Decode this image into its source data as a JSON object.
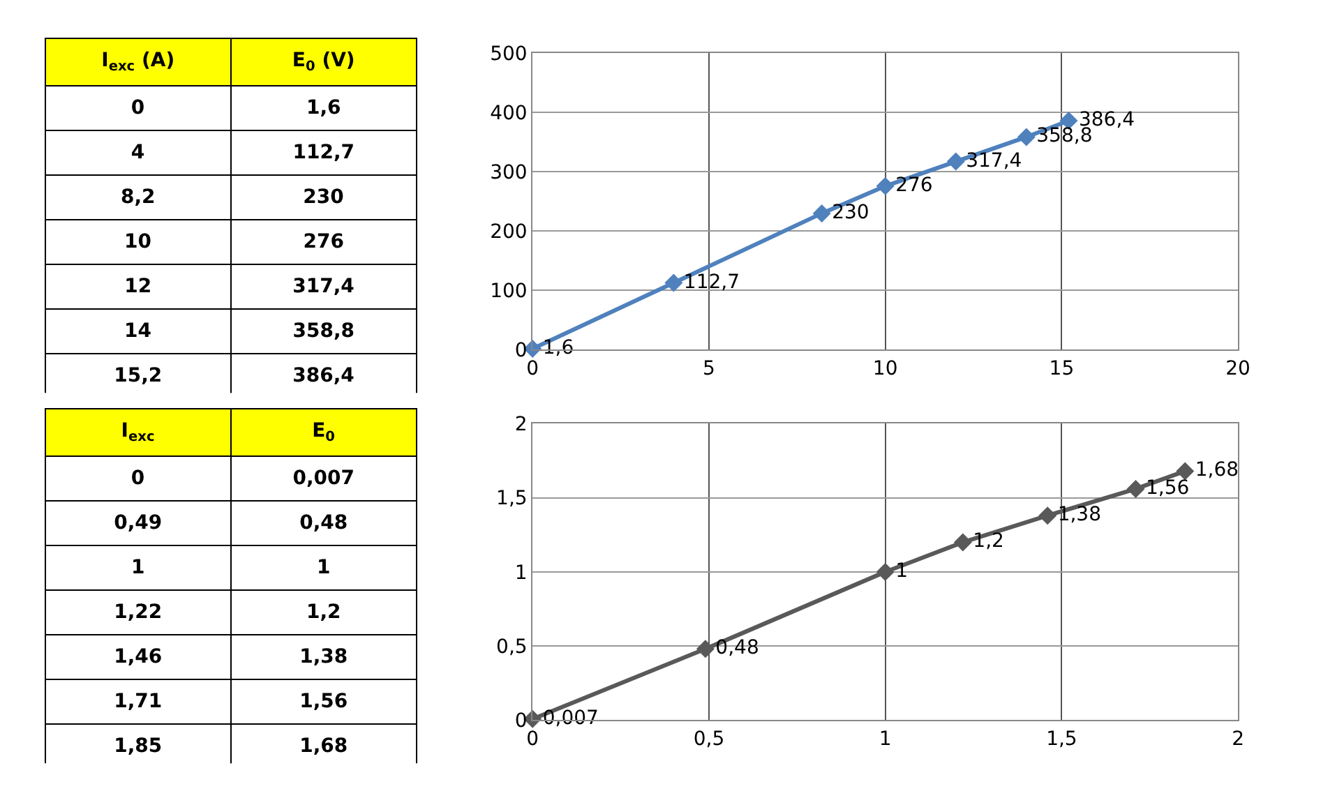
{
  "chart_data": [
    {
      "type": "other",
      "categories": [
        "I$_{exc}$ (A)",
        "E$_{0}$ (V)"
      ],
      "annotations": [
        "0",
        "1,6",
        "4",
        "112,7",
        "8,2",
        "230",
        "10",
        "276",
        "12",
        "317,4",
        "14",
        "358,8",
        "15,2",
        "386,4"
      ]
    },
    {
      "type": "line",
      "x": [
        0,
        4,
        8.2,
        10,
        12,
        14,
        15.2
      ],
      "series": [
        {
          "color": "#4f81bd",
          "values": [
            1.6,
            112.7,
            230,
            276,
            317.4,
            358.8,
            386.4
          ]
        }
      ],
      "value_labels": [
        "1,6",
        "112,7",
        "230",
        "276",
        "317,4",
        "358,8",
        "386,4"
      ],
      "xlim": [
        0,
        20
      ],
      "xticks": [
        0,
        5,
        10,
        15,
        20
      ],
      "ylim": [
        0,
        500
      ],
      "yticks": [
        0,
        100,
        200,
        300,
        400,
        500
      ],
      "grid": true,
      "marker": "diamond",
      "line_style": "solid"
    },
    {
      "type": "other",
      "categories": [
        "I$_{exc}$",
        "E$_{0}$"
      ],
      "annotations": [
        "0",
        "0,007",
        "0,49",
        "0,48",
        "1",
        "1",
        "1,22",
        "1,2",
        "1,46",
        "1,38",
        "1,71",
        "1,56",
        "1,85",
        "1,68"
      ]
    },
    {
      "type": "line",
      "x": [
        0,
        0.49,
        1,
        1.22,
        1.46,
        1.71,
        1.85
      ],
      "series": [
        {
          "color": "#595959",
          "values": [
            0.007,
            0.48,
            1,
            1.2,
            1.38,
            1.56,
            1.68
          ]
        }
      ],
      "value_labels": [
        "0,007",
        "0,48",
        "1",
        "1,2",
        "1,38",
        "1,56",
        "1,68"
      ],
      "xlim": [
        0,
        2
      ],
      "xticks": [
        0,
        {
          "value": 0.5,
          "label": "0,5"
        },
        1,
        {
          "value": 1.5,
          "label": "1,5"
        },
        2
      ],
      "ylim": [
        0,
        2
      ],
      "yticks": [
        0,
        {
          "value": 0.5,
          "label": "0,5"
        },
        1,
        {
          "value": 1.5,
          "label": "1,5"
        },
        2
      ],
      "grid": true,
      "marker": "diamond",
      "line_style": "solid"
    }
  ]
}
